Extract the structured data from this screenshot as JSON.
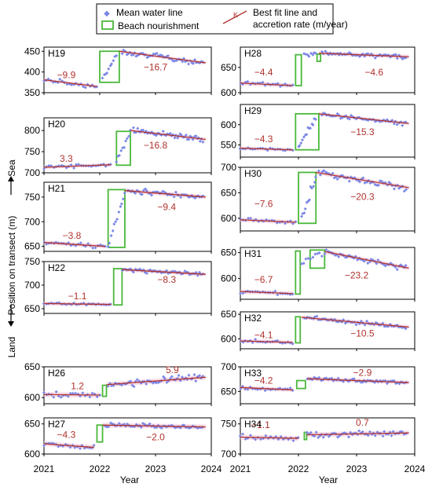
{
  "legend": {
    "mean_water_line": "Mean water line",
    "beach_nourishment": "Beach nourishment",
    "fit_line_1": "Best fit line and",
    "fit_line_2": "accretion rate (m/year)",
    "fit_marker": "K",
    "colors": {
      "points": "#7b87e6",
      "nourishment": "#4ab83a",
      "fit": "#b0322e",
      "band": "#f7c8d8"
    }
  },
  "axes": {
    "x_label": "Year",
    "x_ticks": [
      "2021",
      "2022",
      "2023",
      "2024"
    ],
    "y_label": "Position on transect (m)",
    "y_sea": "Sea",
    "y_land": "Land"
  },
  "chart_data": [
    {
      "type": "scatter",
      "id": "H19",
      "ylim": [
        350,
        460
      ],
      "yticks": [
        350,
        400,
        450
      ],
      "nourishment": [
        [
          2022.0,
          2022.35,
          375,
          450
        ]
      ],
      "fits": [
        {
          "x": [
            2021.0,
            2021.95
          ],
          "y": [
            381,
            365
          ]
        },
        {
          "x": [
            2022.35,
            2023.9
          ],
          "y": [
            450,
            422
          ]
        }
      ],
      "rates": [
        {
          "label": "−9.9",
          "x": 2021.4,
          "y": 393
        },
        {
          "label": "−16.7",
          "x": 2023.0,
          "y": 412
        }
      ],
      "segments": [
        {
          "x0": 2021.0,
          "x1": 2021.95,
          "y0": 381,
          "y1": 365,
          "sd": 5,
          "n": 24
        },
        {
          "x0": 2022.05,
          "x1": 2022.3,
          "y0": 380,
          "y1": 440,
          "sd": 6,
          "n": 10
        },
        {
          "x0": 2022.4,
          "x1": 2023.85,
          "y0": 450,
          "y1": 422,
          "sd": 6,
          "n": 52
        }
      ]
    },
    {
      "type": "scatter",
      "id": "H20",
      "ylim": [
        700,
        830
      ],
      "yticks": [
        700,
        750,
        800
      ],
      "nourishment": [
        [
          2022.3,
          2022.55,
          718,
          798
        ]
      ],
      "fits": [
        {
          "x": [
            2021.0,
            2022.2
          ],
          "y": [
            713,
            719
          ]
        },
        {
          "x": [
            2022.55,
            2023.9
          ],
          "y": [
            800,
            779
          ]
        }
      ],
      "rates": [
        {
          "label": "3.3",
          "x": 2021.4,
          "y": 733
        },
        {
          "label": "−16.8",
          "x": 2023.0,
          "y": 765
        }
      ],
      "segments": [
        {
          "x0": 2021.0,
          "x1": 2022.2,
          "y0": 713,
          "y1": 719,
          "sd": 4,
          "n": 28
        },
        {
          "x0": 2022.3,
          "x1": 2022.55,
          "y0": 730,
          "y1": 795,
          "sd": 8,
          "n": 10
        },
        {
          "x0": 2022.6,
          "x1": 2023.85,
          "y0": 800,
          "y1": 780,
          "sd": 6,
          "n": 50
        }
      ]
    },
    {
      "type": "scatter",
      "id": "H21",
      "ylim": [
        640,
        780
      ],
      "yticks": [
        650,
        700,
        750
      ],
      "nourishment": [
        [
          2022.15,
          2022.45,
          648,
          765
        ]
      ],
      "fits": [
        {
          "x": [
            2021.0,
            2022.1
          ],
          "y": [
            658,
            650
          ]
        },
        {
          "x": [
            2022.45,
            2023.9
          ],
          "y": [
            763,
            750
          ]
        }
      ],
      "rates": [
        {
          "label": "−3.8",
          "x": 2021.5,
          "y": 672
        },
        {
          "label": "−9.4",
          "x": 2023.2,
          "y": 730
        }
      ],
      "segments": [
        {
          "x0": 2021.0,
          "x1": 2022.1,
          "y0": 658,
          "y1": 650,
          "sd": 4,
          "n": 26
        },
        {
          "x0": 2022.15,
          "x1": 2022.45,
          "y0": 650,
          "y1": 760,
          "sd": 8,
          "n": 12
        },
        {
          "x0": 2022.5,
          "x1": 2023.85,
          "y0": 763,
          "y1": 750,
          "sd": 5,
          "n": 48
        }
      ]
    },
    {
      "type": "scatter",
      "id": "H22",
      "ylim": [
        640,
        750
      ],
      "yticks": [
        650,
        700,
        750
      ],
      "nourishment": [
        [
          2022.25,
          2022.4,
          658,
          735
        ]
      ],
      "fits": [
        {
          "x": [
            2021.0,
            2022.2
          ],
          "y": [
            661,
            659
          ]
        },
        {
          "x": [
            2022.4,
            2023.9
          ],
          "y": [
            733,
            723
          ]
        }
      ],
      "rates": [
        {
          "label": "−1.1",
          "x": 2021.6,
          "y": 677
        },
        {
          "label": "−8.3",
          "x": 2023.2,
          "y": 712
        }
      ],
      "segments": [
        {
          "x0": 2021.0,
          "x1": 2022.2,
          "y0": 661,
          "y1": 659,
          "sd": 2,
          "n": 28
        },
        {
          "x0": 2022.4,
          "x1": 2023.85,
          "y0": 733,
          "y1": 723,
          "sd": 4,
          "n": 50
        }
      ]
    },
    {
      "type": "scatter",
      "id": "H26",
      "ylim": [
        590,
        650
      ],
      "yticks": [
        600,
        650
      ],
      "nourishment": [
        [
          2022.05,
          2022.12,
          602,
          620
        ]
      ],
      "fits": [
        {
          "x": [
            2021.0,
            2022.0
          ],
          "y": [
            605,
            604
          ]
        },
        {
          "x": [
            2022.12,
            2023.9
          ],
          "y": [
            621,
            633
          ]
        }
      ],
      "rates": [
        {
          "label": "1.2",
          "x": 2021.6,
          "y": 619
        },
        {
          "label": "5.9",
          "x": 2023.3,
          "y": 645
        }
      ],
      "segments": [
        {
          "x0": 2021.0,
          "x1": 2022.0,
          "y0": 605,
          "y1": 604,
          "sd": 4,
          "n": 24
        },
        {
          "x0": 2022.15,
          "x1": 2023.85,
          "y0": 621,
          "y1": 633,
          "sd": 5,
          "n": 56
        }
      ]
    },
    {
      "type": "scatter",
      "id": "H27",
      "ylim": [
        600,
        660
      ],
      "yticks": [
        600,
        650
      ],
      "nourishment": [
        [
          2021.95,
          2022.05,
          620,
          648
        ]
      ],
      "fits": [
        {
          "x": [
            2021.0,
            2021.9
          ],
          "y": [
            617,
            611
          ]
        },
        {
          "x": [
            2022.05,
            2023.9
          ],
          "y": [
            648,
            645
          ]
        }
      ],
      "rates": [
        {
          "label": "−4.3",
          "x": 2021.4,
          "y": 632
        },
        {
          "label": "−2.0",
          "x": 2023.0,
          "y": 628
        }
      ],
      "segments": [
        {
          "x0": 2021.0,
          "x1": 2021.9,
          "y0": 617,
          "y1": 611,
          "sd": 3,
          "n": 22
        },
        {
          "x0": 2022.1,
          "x1": 2023.85,
          "y0": 648,
          "y1": 645,
          "sd": 3,
          "n": 58
        }
      ]
    },
    {
      "type": "scatter",
      "id": "H28",
      "ylim": [
        600,
        690
      ],
      "yticks": [
        600,
        650
      ],
      "nourishment": [
        [
          2021.95,
          2022.05,
          614,
          675
        ],
        [
          2022.32,
          2022.38,
          662,
          676
        ]
      ],
      "fits": [
        {
          "x": [
            2021.0,
            2021.9
          ],
          "y": [
            619,
            614
          ]
        },
        {
          "x": [
            2022.35,
            2023.9
          ],
          "y": [
            678,
            671
          ]
        }
      ],
      "rates": [
        {
          "label": "−4.4",
          "x": 2021.4,
          "y": 640
        },
        {
          "label": "−4.6",
          "x": 2023.3,
          "y": 640
        }
      ],
      "segments": [
        {
          "x0": 2021.0,
          "x1": 2021.9,
          "y0": 619,
          "y1": 614,
          "sd": 3,
          "n": 22
        },
        {
          "x0": 2022.1,
          "x1": 2022.3,
          "y0": 672,
          "y1": 678,
          "sd": 4,
          "n": 8
        },
        {
          "x0": 2022.4,
          "x1": 2023.85,
          "y0": 678,
          "y1": 671,
          "sd": 4,
          "n": 50
        }
      ]
    },
    {
      "type": "scatter",
      "id": "H29",
      "ylim": [
        520,
        650
      ],
      "yticks": [
        550,
        600
      ],
      "nourishment": [
        [
          2021.95,
          2022.35,
          538,
          627
        ]
      ],
      "fits": [
        {
          "x": [
            2021.0,
            2021.9
          ],
          "y": [
            542,
            538
          ]
        },
        {
          "x": [
            2022.35,
            2023.9
          ],
          "y": [
            627,
            603
          ]
        }
      ],
      "rates": [
        {
          "label": "−4.3",
          "x": 2021.4,
          "y": 565
        },
        {
          "label": "−15.3",
          "x": 2023.1,
          "y": 582
        }
      ],
      "segments": [
        {
          "x0": 2021.0,
          "x1": 2021.9,
          "y0": 542,
          "y1": 538,
          "sd": 3,
          "n": 22
        },
        {
          "x0": 2022.0,
          "x1": 2022.3,
          "y0": 545,
          "y1": 615,
          "sd": 8,
          "n": 14
        },
        {
          "x0": 2022.4,
          "x1": 2023.85,
          "y0": 627,
          "y1": 603,
          "sd": 5,
          "n": 50
        }
      ]
    },
    {
      "type": "scatter",
      "id": "H30",
      "ylim": [
        575,
        700
      ],
      "yticks": [
        600,
        650,
        700
      ],
      "nourishment": [
        [
          2022.0,
          2022.3,
          590,
          690
        ]
      ],
      "fits": [
        {
          "x": [
            2021.0,
            2021.95
          ],
          "y": [
            597,
            592
          ]
        },
        {
          "x": [
            2022.3,
            2023.9
          ],
          "y": [
            690,
            660
          ]
        }
      ],
      "rates": [
        {
          "label": "−7.6",
          "x": 2021.4,
          "y": 628
        },
        {
          "label": "−20.3",
          "x": 2023.1,
          "y": 642
        }
      ],
      "segments": [
        {
          "x0": 2021.0,
          "x1": 2021.95,
          "y0": 597,
          "y1": 592,
          "sd": 3,
          "n": 22
        },
        {
          "x0": 2022.05,
          "x1": 2022.3,
          "y0": 600,
          "y1": 680,
          "sd": 9,
          "n": 12
        },
        {
          "x0": 2022.35,
          "x1": 2023.85,
          "y0": 690,
          "y1": 660,
          "sd": 6,
          "n": 52
        }
      ]
    },
    {
      "type": "scatter",
      "id": "H31",
      "ylim": [
        560,
        660
      ],
      "yticks": [
        600,
        650
      ],
      "nourishment": [
        [
          2021.95,
          2022.03,
          570,
          653
        ],
        [
          2022.2,
          2022.45,
          620,
          655
        ]
      ],
      "fits": [
        {
          "x": [
            2021.0,
            2021.9
          ],
          "y": [
            575,
            571
          ]
        },
        {
          "x": [
            2022.45,
            2023.9
          ],
          "y": [
            652,
            620
          ]
        }
      ],
      "rates": [
        {
          "label": "−6.7",
          "x": 2021.4,
          "y": 598
        },
        {
          "label": "−23.2",
          "x": 2023.0,
          "y": 606
        }
      ],
      "segments": [
        {
          "x0": 2021.0,
          "x1": 2021.9,
          "y0": 575,
          "y1": 571,
          "sd": 3,
          "n": 22
        },
        {
          "x0": 2022.05,
          "x1": 2022.4,
          "y0": 632,
          "y1": 645,
          "sd": 5,
          "n": 10
        },
        {
          "x0": 2022.45,
          "x1": 2023.85,
          "y0": 652,
          "y1": 620,
          "sd": 5,
          "n": 48
        }
      ]
    },
    {
      "type": "scatter",
      "id": "H32",
      "ylim": [
        580,
        655
      ],
      "yticks": [
        600,
        650
      ],
      "nourishment": [
        [
          2021.95,
          2022.03,
          592,
          645
        ]
      ],
      "fits": [
        {
          "x": [
            2021.0,
            2021.9
          ],
          "y": [
            596,
            593
          ]
        },
        {
          "x": [
            2022.05,
            2023.9
          ],
          "y": [
            644,
            624
          ]
        }
      ],
      "rates": [
        {
          "label": "−4.1",
          "x": 2021.4,
          "y": 608
        },
        {
          "label": "−10.5",
          "x": 2023.1,
          "y": 611
        }
      ],
      "segments": [
        {
          "x0": 2021.0,
          "x1": 2021.9,
          "y0": 596,
          "y1": 593,
          "sd": 3,
          "n": 22
        },
        {
          "x0": 2022.1,
          "x1": 2023.85,
          "y0": 644,
          "y1": 624,
          "sd": 4,
          "n": 58
        }
      ]
    },
    {
      "type": "scatter",
      "id": "H33",
      "ylim": [
        625,
        700
      ],
      "yticks": [
        650,
        700
      ],
      "nourishment": [
        [
          2021.97,
          2022.12,
          656,
          672
        ]
      ],
      "fits": [
        {
          "x": [
            2021.0,
            2021.9
          ],
          "y": [
            658,
            653
          ]
        },
        {
          "x": [
            2022.15,
            2023.9
          ],
          "y": [
            676,
            668
          ]
        }
      ],
      "rates": [
        {
          "label": "−4.2",
          "x": 2021.4,
          "y": 672
        },
        {
          "label": "−2.9",
          "x": 2023.1,
          "y": 688
        }
      ],
      "segments": [
        {
          "x0": 2021.0,
          "x1": 2021.9,
          "y0": 658,
          "y1": 653,
          "sd": 3,
          "n": 22
        },
        {
          "x0": 2022.15,
          "x1": 2023.85,
          "y0": 676,
          "y1": 668,
          "sd": 3,
          "n": 58
        }
      ]
    },
    {
      "type": "scatter",
      "id": "H34",
      "ylim": [
        700,
        760
      ],
      "yticks": [
        700,
        750
      ],
      "nourishment": [
        [
          2022.1,
          2022.14,
          724,
          736
        ]
      ],
      "fits": [
        {
          "x": [
            2021.0,
            2022.0
          ],
          "y": [
            728,
            726
          ]
        },
        {
          "x": [
            2022.14,
            2023.9
          ],
          "y": [
            732,
            735
          ]
        }
      ],
      "rates": [
        {
          "label": "−1.1",
          "x": 2021.35,
          "y": 748
        },
        {
          "label": "0.7",
          "x": 2023.1,
          "y": 752
        }
      ],
      "segments": [
        {
          "x0": 2021.0,
          "x1": 2022.0,
          "y0": 728,
          "y1": 726,
          "sd": 4,
          "n": 24
        },
        {
          "x0": 2022.15,
          "x1": 2023.85,
          "y0": 732,
          "y1": 735,
          "sd": 4,
          "n": 56
        }
      ]
    }
  ]
}
